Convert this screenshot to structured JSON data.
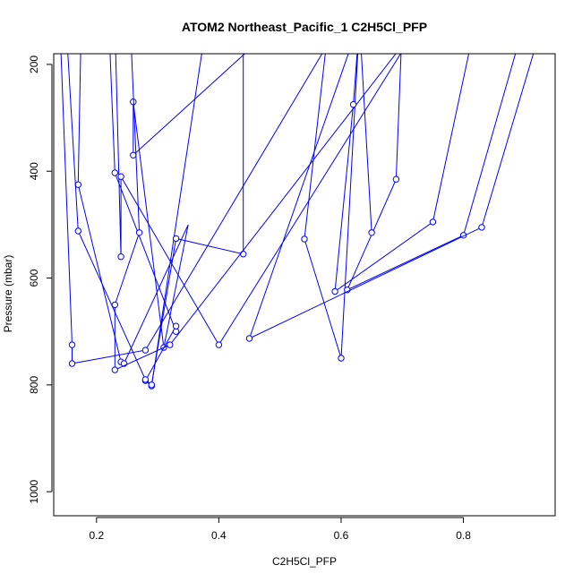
{
  "chart_data": {
    "type": "line",
    "title": "ATOM2 Northeast_Pacific_1 C2H5Cl_PFP",
    "xlabel": "C2H5Cl_PFP",
    "ylabel": "Pressure (mbar)",
    "xlim": [
      0.13,
      0.95
    ],
    "ylim": [
      1045,
      180
    ],
    "y_reversed": true,
    "xticks": [
      0.2,
      0.4,
      0.6,
      0.8
    ],
    "yticks": [
      200,
      400,
      600,
      800,
      1000
    ],
    "grid": false,
    "line_color": "#0000ff",
    "marker": "open-circle",
    "series": [
      {
        "x": [
          0.175,
          0.17,
          0.24,
          0.245,
          0.35,
          0.31,
          0.26,
          0.26,
          0.5
        ],
        "y": [
          120,
          425,
          757,
          760,
          500,
          730,
          270,
          370,
          120
        ],
        "markers": [
          false,
          true,
          true,
          true,
          false,
          true,
          true,
          true,
          false
        ]
      },
      {
        "x": [
          0.22,
          0.23,
          0.33,
          0.33,
          0.28,
          0.29,
          0.38
        ],
        "y": [
          120,
          403,
          700,
          690,
          792,
          802,
          120
        ],
        "markers": [
          false,
          true,
          true,
          true,
          true,
          true,
          false
        ]
      },
      {
        "x": [
          0.14,
          0.16,
          0.16,
          0.28,
          0.6
        ],
        "y": [
          120,
          725,
          760,
          735,
          120
        ],
        "markers": [
          false,
          true,
          true,
          true,
          false
        ]
      },
      {
        "x": [
          0.15,
          0.17,
          0.28,
          0.29,
          0.33,
          0.44,
          0.44
        ],
        "y": [
          120,
          512,
          790,
          800,
          526,
          555,
          120
        ],
        "markers": [
          false,
          true,
          true,
          true,
          true,
          true,
          false
        ]
      },
      {
        "x": [
          0.23,
          0.24,
          0.24,
          0.4,
          0.73
        ],
        "y": [
          120,
          560,
          410,
          725,
          120
        ],
        "markers": [
          false,
          true,
          true,
          true,
          false
        ]
      },
      {
        "x": [
          0.255,
          0.27,
          0.23,
          0.23,
          0.32,
          0.73
        ],
        "y": [
          120,
          515,
          650,
          772,
          725,
          120
        ],
        "markers": [
          false,
          true,
          true,
          true,
          true,
          false
        ]
      },
      {
        "x": [
          0.58,
          0.54,
          0.6,
          0.63,
          0.62,
          0.59,
          0.75,
          0.82
        ],
        "y": [
          120,
          527,
          750,
          120,
          275,
          625,
          495,
          120
        ],
        "markers": [
          false,
          true,
          true,
          false,
          true,
          true,
          true,
          false
        ]
      },
      {
        "x": [
          0.7,
          0.69,
          0.61,
          0.8,
          0.9
        ],
        "y": [
          120,
          415,
          622,
          520,
          120
        ],
        "markers": [
          false,
          true,
          true,
          true,
          false
        ]
      },
      {
        "x": [
          0.63,
          0.65,
          0.63,
          0.45,
          0.83,
          0.93
        ],
        "y": [
          120,
          515,
          120,
          713,
          505,
          120
        ],
        "markers": [
          false,
          true,
          false,
          true,
          true,
          false
        ]
      }
    ]
  }
}
